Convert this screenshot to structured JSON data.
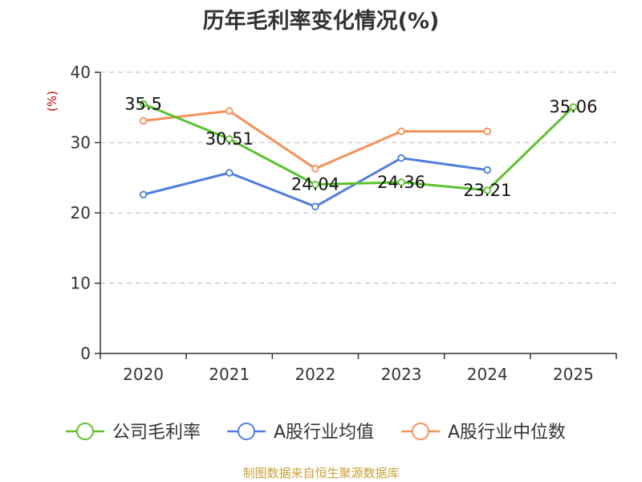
{
  "chart_data": {
    "type": "line",
    "title": "历年毛利率变化情况(%)",
    "unit_label": "(%)",
    "categories": [
      "2020",
      "2021",
      "2022",
      "2023",
      "2024",
      "2025"
    ],
    "ylim": [
      0,
      40
    ],
    "yticks": [
      "0",
      "10",
      "20",
      "30",
      "40"
    ],
    "grid": true,
    "legend_position": "bottom",
    "series": [
      {
        "name": "公司毛利率",
        "color": "#5cc22e",
        "values": [
          35.5,
          30.51,
          24.04,
          24.36,
          23.21,
          35.06
        ],
        "labels": [
          "35.5",
          "30.51",
          "24.04",
          "24.36",
          "23.21",
          "35.06"
        ]
      },
      {
        "name": "A股行业均值",
        "color": "#4f7fdc",
        "values": [
          22.6,
          25.7,
          20.9,
          27.8,
          26.1,
          null
        ]
      },
      {
        "name": "A股行业中位数",
        "color": "#f5915a",
        "values": [
          33.1,
          34.5,
          26.3,
          31.6,
          31.6,
          null
        ]
      }
    ]
  },
  "source": "制图数据来自恒生聚源数据库"
}
